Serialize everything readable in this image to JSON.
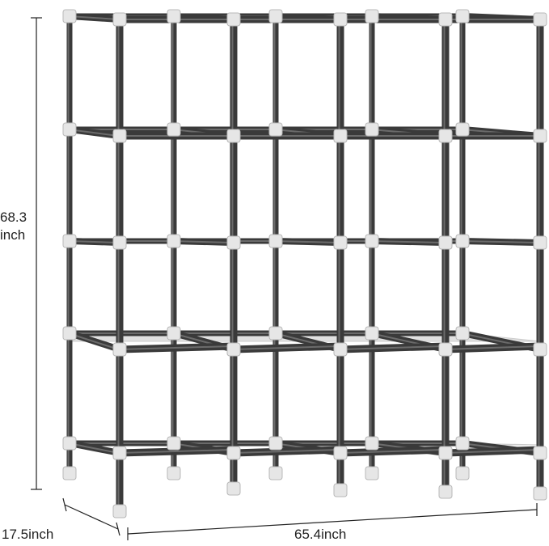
{
  "dimensions": {
    "height_line1": "68.3",
    "height_line2": "inch",
    "depth": "17.5inch",
    "width": "65.4inch"
  },
  "colors": {
    "pole": "#3a3a3a",
    "pole_highlight": "#6b6b6b",
    "connector": "#e6e6e6",
    "connector_edge": "#b8b8b8",
    "shelf_fabric": "#dcdcdc",
    "dimension_line": "#222222"
  },
  "product": {
    "name": "freestanding-clothes-rack",
    "columns": 4,
    "tiers": 4,
    "fabric_shelves": 2
  }
}
